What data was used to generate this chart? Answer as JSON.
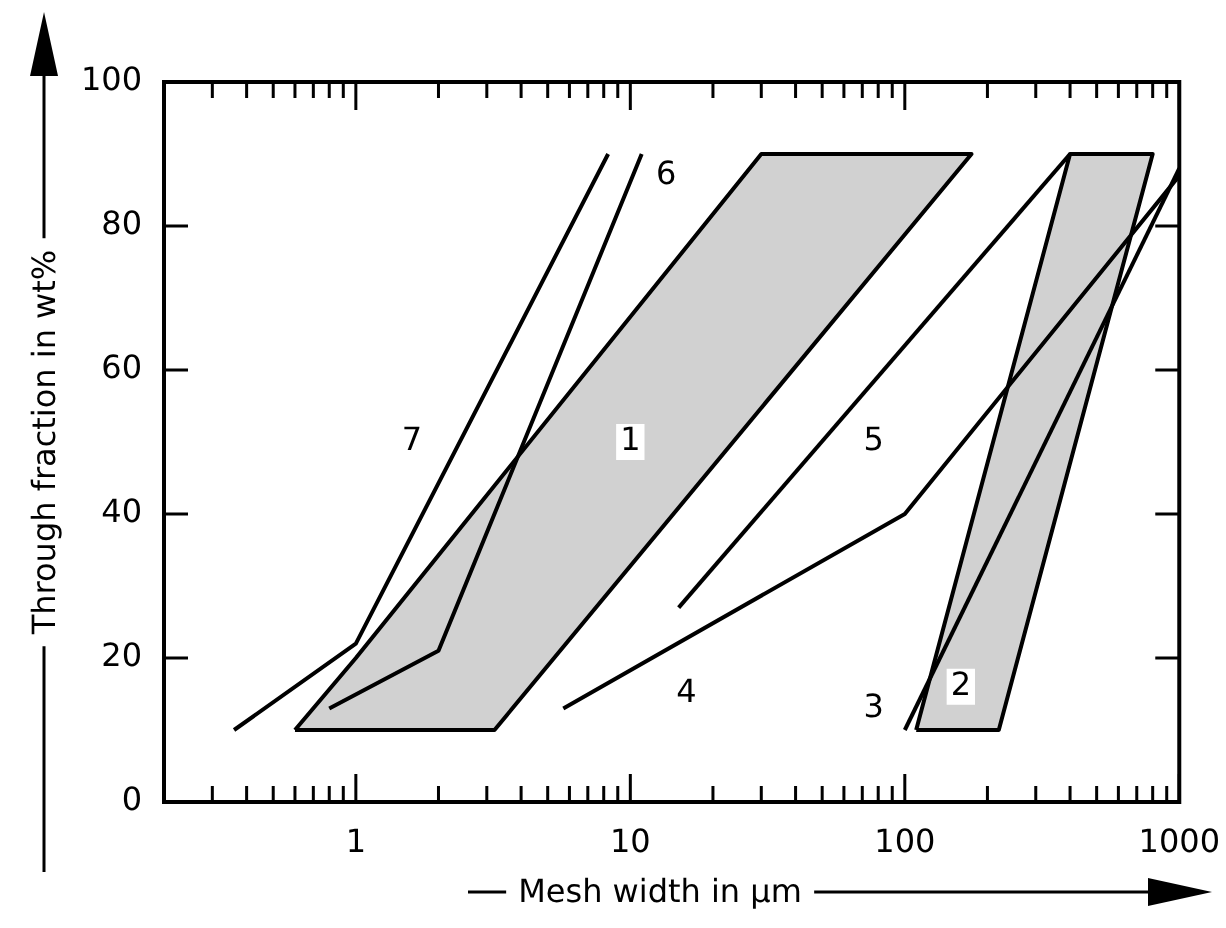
{
  "chart_data": {
    "type": "line",
    "xlabel": "Mesh width in µm",
    "ylabel": "Through fraction in wt%",
    "log": "x",
    "grid": false,
    "legend": false,
    "marker": "none",
    "line_style": "solid",
    "xlim": [
      0.2,
      1000
    ],
    "ylim": [
      0,
      100
    ],
    "xticks": [
      {
        "value": 0.3,
        "label": null
      },
      {
        "value": 0.4,
        "label": null
      },
      {
        "value": 0.5,
        "label": null
      },
      {
        "value": 0.6,
        "label": null
      },
      {
        "value": 0.7,
        "label": null
      },
      {
        "value": 0.8,
        "label": null
      },
      {
        "value": 0.9,
        "label": null
      },
      1,
      {
        "value": 2,
        "label": null
      },
      {
        "value": 3,
        "label": null
      },
      {
        "value": 4,
        "label": null
      },
      {
        "value": 5,
        "label": null
      },
      {
        "value": 6,
        "label": null
      },
      {
        "value": 7,
        "label": null
      },
      {
        "value": 8,
        "label": null
      },
      {
        "value": 9,
        "label": null
      },
      10,
      {
        "value": 20,
        "label": null
      },
      {
        "value": 30,
        "label": null
      },
      {
        "value": 40,
        "label": null
      },
      {
        "value": 50,
        "label": null
      },
      {
        "value": 60,
        "label": null
      },
      {
        "value": 70,
        "label": null
      },
      {
        "value": 80,
        "label": null
      },
      {
        "value": 90,
        "label": null
      },
      100,
      {
        "value": 200,
        "label": null
      },
      {
        "value": 300,
        "label": null
      },
      {
        "value": 400,
        "label": null
      },
      {
        "value": 500,
        "label": null
      },
      {
        "value": 600,
        "label": null
      },
      {
        "value": 700,
        "label": null
      },
      {
        "value": 800,
        "label": null
      },
      {
        "value": 900,
        "label": null
      },
      1000
    ],
    "yticks": [
      0,
      20,
      40,
      60,
      80,
      100
    ],
    "series": [
      {
        "type": "area",
        "color": "#000000",
        "x": [
          0.6,
          1,
          30,
          175,
          3.2,
          0.6
        ],
        "values": [
          10,
          20,
          90,
          90,
          10,
          10
        ]
      },
      {
        "type": "area",
        "color": "#000000",
        "x": [
          110,
          400,
          800,
          220,
          110
        ],
        "values": [
          10,
          90,
          90,
          10,
          10
        ]
      },
      {
        "type": "line",
        "color": "#000000",
        "x": [
          100,
          1000
        ],
        "values": [
          10,
          88
        ]
      },
      {
        "type": "line",
        "color": "#000000",
        "x": [
          5.7,
          100,
          1000
        ],
        "values": [
          13,
          40,
          87
        ]
      },
      {
        "type": "line",
        "color": "#000000",
        "x": [
          15,
          400
        ],
        "values": [
          27,
          90
        ]
      },
      {
        "type": "line",
        "color": "#000000",
        "x": [
          0.8,
          2,
          11
        ],
        "values": [
          13,
          21,
          90
        ]
      },
      {
        "type": "line",
        "color": "#000000",
        "x": [
          0.36,
          1,
          8.3
        ],
        "values": [
          10,
          22,
          90
        ]
      }
    ],
    "annotations": [
      {
        "text": "1",
        "x": 10,
        "y": 50
      },
      {
        "text": "2",
        "x": 160,
        "y": 16
      },
      {
        "text": "3",
        "x": 77,
        "y": 13
      },
      {
        "text": "4",
        "x": 16,
        "y": 15
      },
      {
        "text": "5",
        "x": 77,
        "y": 50
      },
      {
        "text": "6",
        "x": 13.5,
        "y": 87
      },
      {
        "text": "7",
        "x": 1.6,
        "y": 50
      }
    ]
  }
}
